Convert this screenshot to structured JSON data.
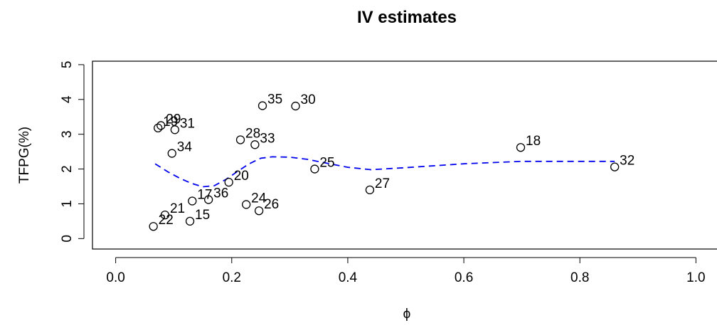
{
  "chart_data": {
    "type": "scatter",
    "title": "IV estimates",
    "xlabel": "ϕ",
    "ylabel": "TFPG(%)",
    "xlim": [
      -0.04,
      1.04
    ],
    "ylim": [
      -0.3,
      5.1
    ],
    "x_ticks": [
      0.0,
      0.2,
      0.4,
      0.6,
      0.8,
      1.0
    ],
    "x_tick_labels": [
      "0.0",
      "0.2",
      "0.4",
      "0.6",
      "0.8",
      "1.0"
    ],
    "y_ticks": [
      0,
      1,
      2,
      3,
      4,
      5
    ],
    "y_tick_labels": [
      "0",
      "1",
      "2",
      "3",
      "4",
      "5"
    ],
    "grid": false,
    "points": [
      {
        "label": "22",
        "x": 0.065,
        "y": 0.35
      },
      {
        "label": "21",
        "x": 0.085,
        "y": 0.68
      },
      {
        "label": "15",
        "x": 0.128,
        "y": 0.5
      },
      {
        "label": "17",
        "x": 0.132,
        "y": 1.08
      },
      {
        "label": "36",
        "x": 0.16,
        "y": 1.12
      },
      {
        "label": "20",
        "x": 0.195,
        "y": 1.62
      },
      {
        "label": "34",
        "x": 0.097,
        "y": 2.45
      },
      {
        "label": "29",
        "x": 0.078,
        "y": 3.25
      },
      {
        "label": "19",
        "x": 0.073,
        "y": 3.18
      },
      {
        "label": "31",
        "x": 0.102,
        "y": 3.13
      },
      {
        "label": "28",
        "x": 0.215,
        "y": 2.84
      },
      {
        "label": "33",
        "x": 0.24,
        "y": 2.7
      },
      {
        "label": "24",
        "x": 0.225,
        "y": 0.98
      },
      {
        "label": "26",
        "x": 0.247,
        "y": 0.8
      },
      {
        "label": "35",
        "x": 0.253,
        "y": 3.82
      },
      {
        "label": "30",
        "x": 0.31,
        "y": 3.81
      },
      {
        "label": "25",
        "x": 0.343,
        "y": 2.0
      },
      {
        "label": "27",
        "x": 0.438,
        "y": 1.4
      },
      {
        "label": "18",
        "x": 0.698,
        "y": 2.62
      },
      {
        "label": "32",
        "x": 0.86,
        "y": 2.06
      }
    ],
    "smooth_line": {
      "style": "dashed",
      "color": "#0000ee",
      "x": [
        0.068,
        0.09,
        0.11,
        0.13,
        0.15,
        0.17,
        0.19,
        0.21,
        0.23,
        0.25,
        0.27,
        0.3,
        0.33,
        0.36,
        0.4,
        0.44,
        0.5,
        0.6,
        0.7,
        0.8,
        0.86
      ],
      "y": [
        2.15,
        1.92,
        1.74,
        1.59,
        1.49,
        1.52,
        1.7,
        1.93,
        2.15,
        2.31,
        2.35,
        2.34,
        2.28,
        2.18,
        2.05,
        1.98,
        2.04,
        2.15,
        2.22,
        2.22,
        2.22
      ]
    }
  }
}
